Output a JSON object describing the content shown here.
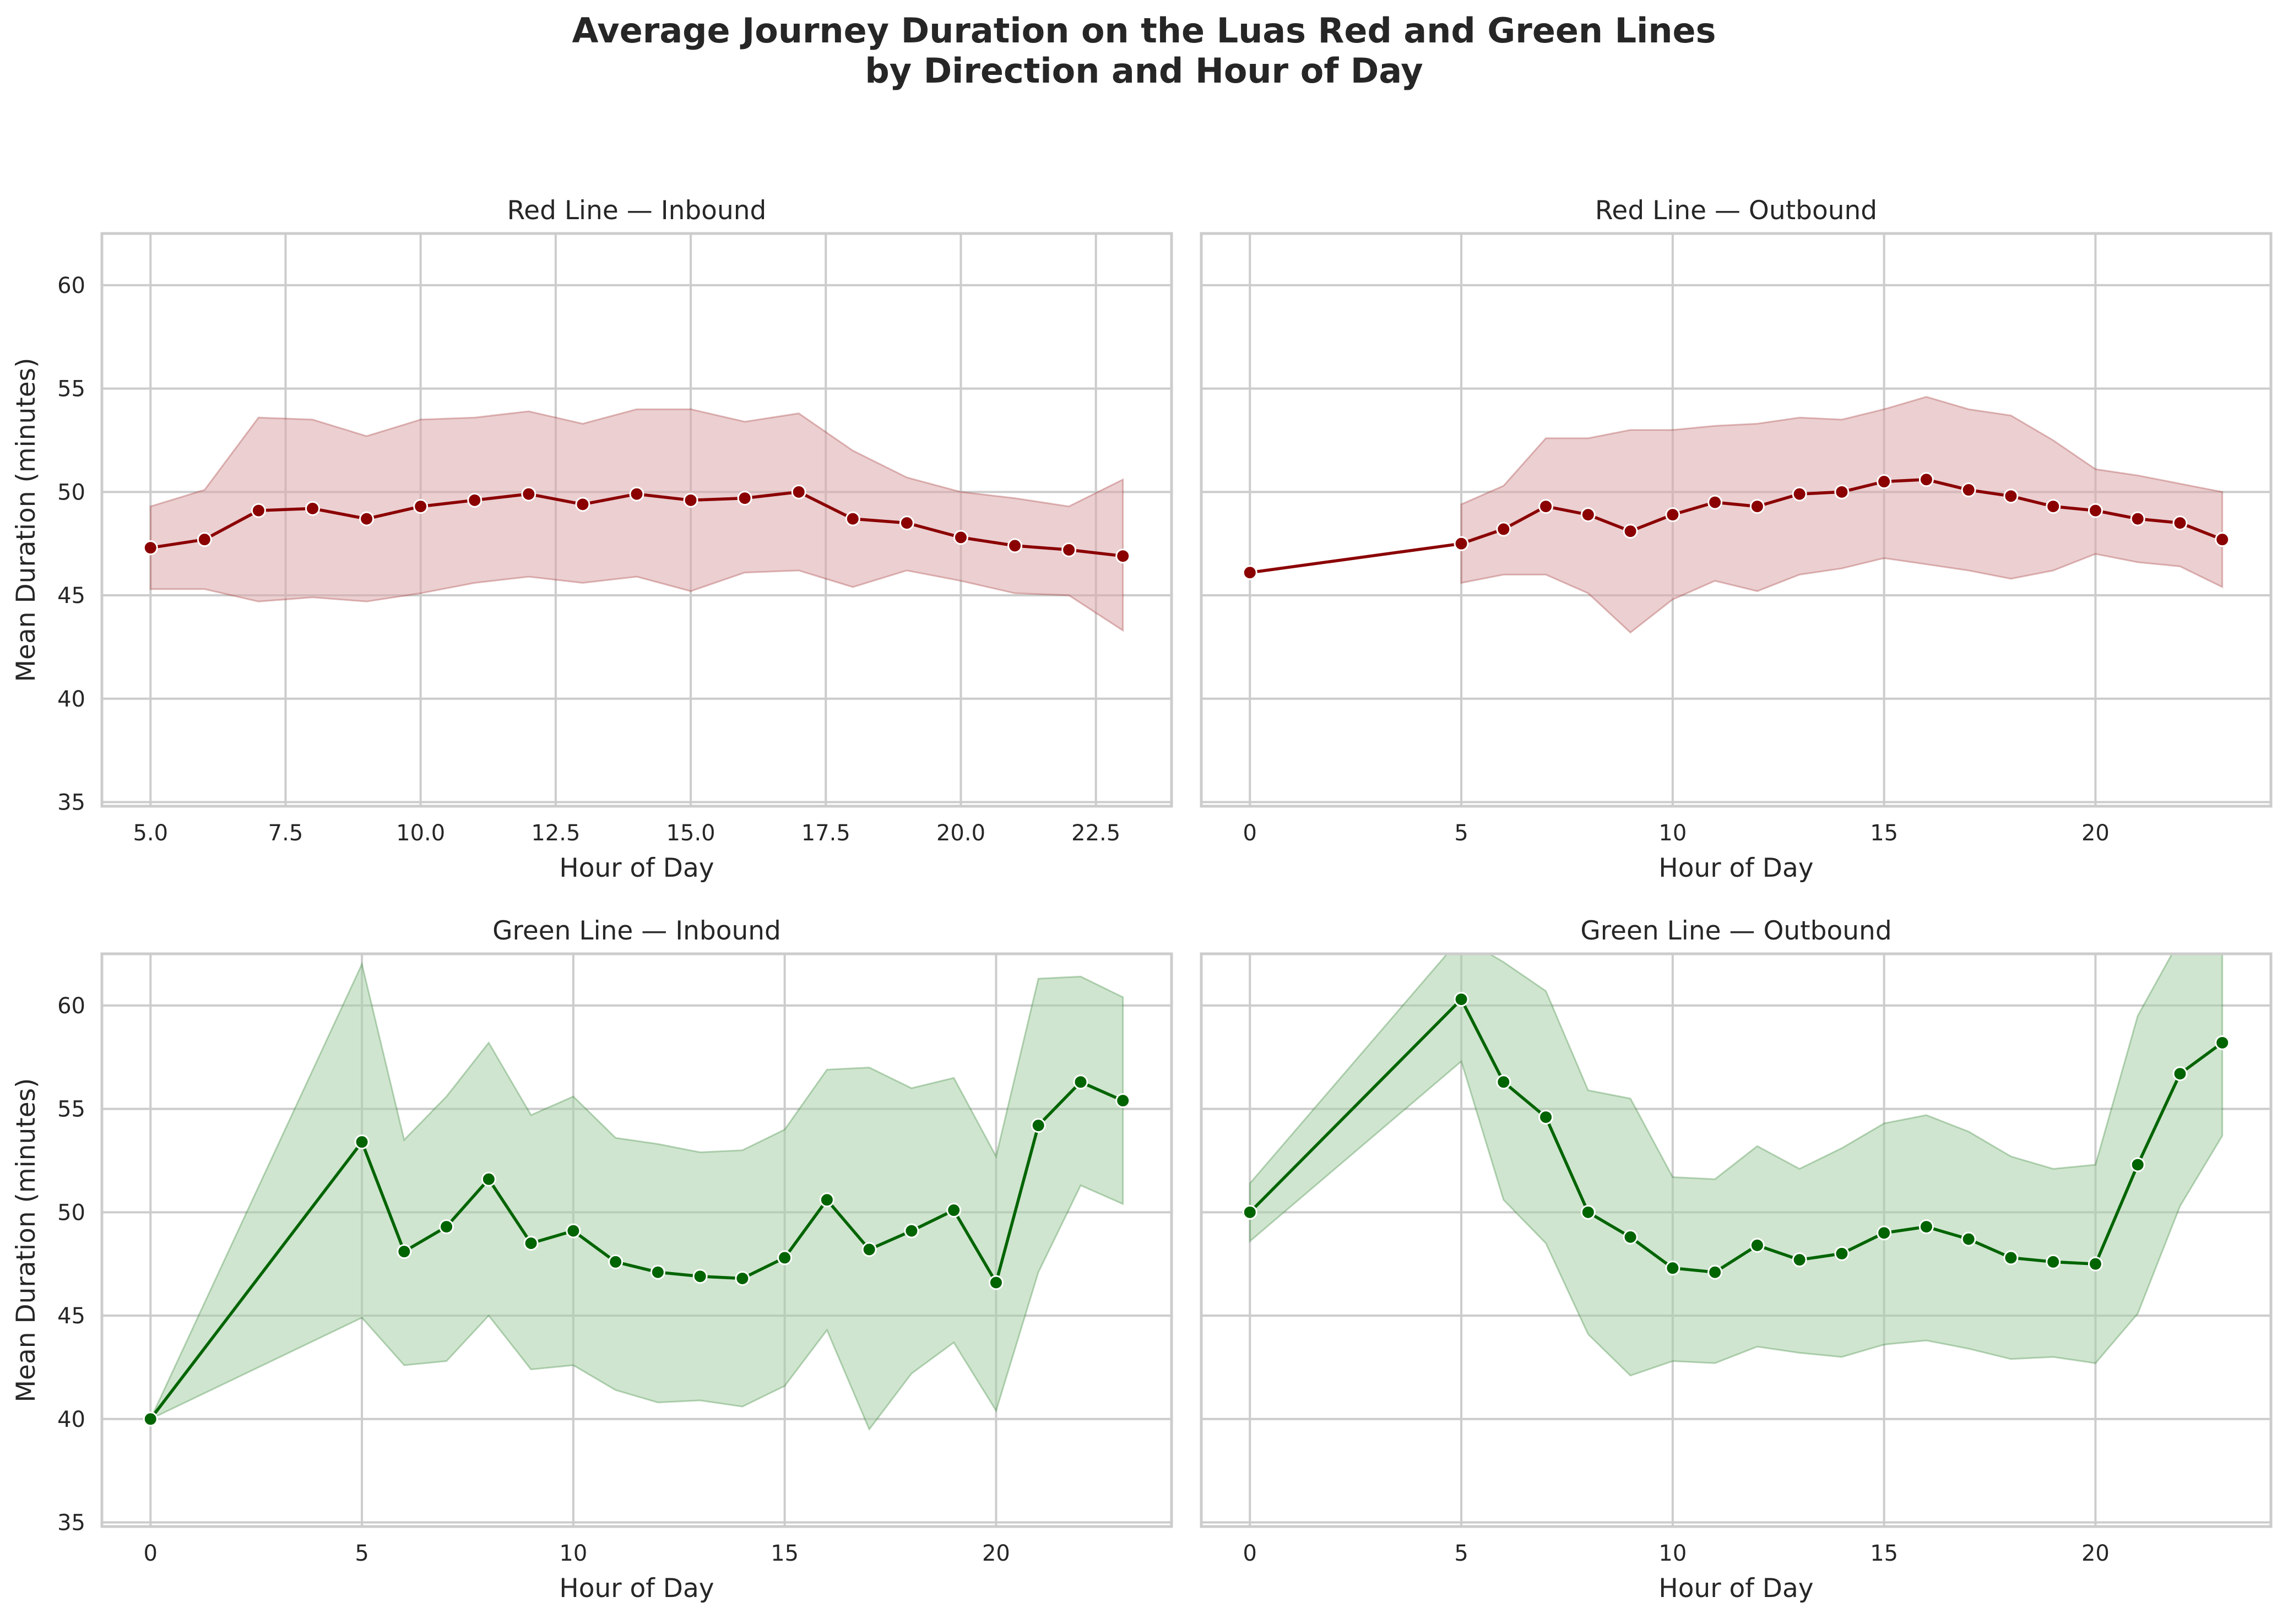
{
  "figure": {
    "title_line1": "Average Journey Duration on the Luas Red and Green Lines",
    "title_line2": "by Direction and Hour of Day"
  },
  "colors": {
    "red_line": "#8b0000",
    "red_band": "#dba7ab",
    "green_line": "#006400",
    "green_band": "#a7cfa7",
    "grid": "#cccccc",
    "frame": "#cccccc"
  },
  "chart_data": [
    {
      "type": "line",
      "title": "Red Line — Inbound",
      "xlabel": "Hour of Day",
      "ylabel": "Mean Duration (minutes)",
      "color_key": "red",
      "xlim": [
        4.1,
        23.9
      ],
      "ylim": [
        34.8,
        62.5
      ],
      "xticks": [
        5,
        7.5,
        10,
        12.5,
        15,
        17.5,
        20,
        22.5
      ],
      "xtick_labels": [
        "5.0",
        "7.5",
        "10.0",
        "12.5",
        "15.0",
        "17.5",
        "20.0",
        "22.5"
      ],
      "yticks": [
        35,
        40,
        45,
        50,
        55,
        60
      ],
      "ytick_labels": [
        "35",
        "40",
        "45",
        "50",
        "55",
        "60"
      ],
      "grid": true,
      "series": [
        {
          "x": [
            5,
            6,
            7,
            8,
            9,
            10,
            11,
            12,
            13,
            14,
            15,
            16,
            17,
            18,
            19,
            20,
            21,
            22,
            23
          ],
          "y": [
            47.3,
            47.7,
            49.1,
            49.2,
            48.7,
            49.3,
            49.6,
            49.9,
            49.4,
            49.9,
            49.6,
            49.7,
            50.0,
            48.7,
            48.5,
            47.8,
            47.4,
            47.2,
            46.9
          ],
          "ci_low": [
            45.3,
            45.3,
            44.7,
            44.9,
            44.7,
            45.1,
            45.6,
            45.9,
            45.6,
            45.9,
            45.2,
            46.1,
            46.2,
            45.4,
            46.2,
            45.7,
            45.1,
            45.0,
            43.3
          ],
          "ci_high": [
            49.3,
            50.1,
            53.6,
            53.5,
            52.7,
            53.5,
            53.6,
            53.9,
            53.3,
            54.0,
            54.0,
            53.4,
            53.8,
            52.0,
            50.7,
            50.0,
            49.7,
            49.3,
            50.6
          ]
        }
      ]
    },
    {
      "type": "line",
      "title": "Red Line — Outbound",
      "xlabel": "Hour of Day",
      "ylabel": "",
      "color_key": "red",
      "xlim": [
        -1.15,
        24.15
      ],
      "ylim": [
        34.8,
        62.5
      ],
      "xticks": [
        0,
        5,
        10,
        15,
        20
      ],
      "xtick_labels": [
        "0",
        "5",
        "10",
        "15",
        "20"
      ],
      "yticks": [
        35,
        40,
        45,
        50,
        55,
        60
      ],
      "ytick_labels": [],
      "grid": true,
      "series": [
        {
          "x": [
            0,
            5,
            6,
            7,
            8,
            9,
            10,
            11,
            12,
            13,
            14,
            15,
            16,
            17,
            18,
            19,
            20,
            21,
            22,
            23
          ],
          "y": [
            46.1,
            47.5,
            48.2,
            49.3,
            48.9,
            48.1,
            48.9,
            49.5,
            49.3,
            49.9,
            50.0,
            50.5,
            50.6,
            50.1,
            49.8,
            49.3,
            49.1,
            48.7,
            48.5,
            47.7
          ],
          "ci_low": [
            null,
            45.6,
            46.0,
            46.0,
            45.1,
            43.2,
            44.8,
            45.7,
            45.2,
            46.0,
            46.3,
            46.8,
            46.5,
            46.2,
            45.8,
            46.2,
            47.0,
            46.6,
            46.4,
            45.4
          ],
          "ci_high": [
            null,
            49.4,
            50.3,
            52.6,
            52.6,
            53.0,
            53.0,
            53.2,
            53.3,
            53.6,
            53.5,
            54.0,
            54.6,
            54.0,
            53.7,
            52.5,
            51.1,
            50.8,
            50.4,
            50.0
          ]
        }
      ]
    },
    {
      "type": "line",
      "title": "Green Line — Inbound",
      "xlabel": "Hour of Day",
      "ylabel": "Mean Duration (minutes)",
      "color_key": "green",
      "xlim": [
        -1.15,
        24.15
      ],
      "ylim": [
        34.8,
        62.5
      ],
      "xticks": [
        0,
        5,
        10,
        15,
        20
      ],
      "xtick_labels": [
        "0",
        "5",
        "10",
        "15",
        "20"
      ],
      "yticks": [
        35,
        40,
        45,
        50,
        55,
        60
      ],
      "ytick_labels": [
        "35",
        "40",
        "45",
        "50",
        "55",
        "60"
      ],
      "grid": true,
      "series": [
        {
          "x": [
            0,
            5,
            6,
            7,
            8,
            9,
            10,
            11,
            12,
            13,
            14,
            15,
            16,
            17,
            18,
            19,
            20,
            21,
            22,
            23
          ],
          "y": [
            40.0,
            53.4,
            48.1,
            49.3,
            51.6,
            48.5,
            49.1,
            47.6,
            47.1,
            46.9,
            46.8,
            47.8,
            50.6,
            48.2,
            49.1,
            50.1,
            46.6,
            54.2,
            56.3,
            55.4
          ],
          "ci_low": [
            40.0,
            44.9,
            42.6,
            42.8,
            45.0,
            42.4,
            42.6,
            41.4,
            40.8,
            40.9,
            40.6,
            41.6,
            44.3,
            39.5,
            42.2,
            43.7,
            40.4,
            47.1,
            51.3,
            50.4
          ],
          "ci_high": [
            40.0,
            62.0,
            53.5,
            55.6,
            58.2,
            54.7,
            55.6,
            53.6,
            53.3,
            52.9,
            53.0,
            54.0,
            56.9,
            57.0,
            56.0,
            56.5,
            52.7,
            61.3,
            61.4,
            60.4
          ]
        }
      ]
    },
    {
      "type": "line",
      "title": "Green Line — Outbound",
      "xlabel": "Hour of Day",
      "ylabel": "",
      "color_key": "green",
      "xlim": [
        -1.15,
        24.15
      ],
      "ylim": [
        34.8,
        62.5
      ],
      "xticks": [
        0,
        5,
        10,
        15,
        20
      ],
      "xtick_labels": [
        "0",
        "5",
        "10",
        "15",
        "20"
      ],
      "yticks": [
        35,
        40,
        45,
        50,
        55,
        60
      ],
      "ytick_labels": [],
      "grid": true,
      "series": [
        {
          "x": [
            0,
            5,
            6,
            7,
            8,
            9,
            10,
            11,
            12,
            13,
            14,
            15,
            16,
            17,
            18,
            19,
            20,
            21,
            22,
            23
          ],
          "y": [
            50.0,
            60.3,
            56.3,
            54.6,
            50.0,
            48.8,
            47.3,
            47.1,
            48.4,
            47.7,
            48.0,
            49.0,
            49.3,
            48.7,
            47.8,
            47.6,
            47.5,
            52.3,
            56.7,
            58.2
          ],
          "ci_low": [
            48.6,
            57.3,
            50.6,
            48.5,
            44.1,
            42.1,
            42.8,
            42.7,
            43.5,
            43.2,
            43.0,
            43.6,
            43.8,
            43.4,
            42.9,
            43.0,
            42.7,
            45.1,
            50.3,
            53.7
          ],
          "ci_high": [
            51.4,
            63.3,
            62.1,
            60.7,
            55.9,
            55.5,
            51.7,
            51.6,
            53.2,
            52.1,
            53.1,
            54.3,
            54.7,
            53.9,
            52.7,
            52.1,
            52.3,
            59.5,
            63.2,
            62.8
          ]
        }
      ]
    }
  ]
}
